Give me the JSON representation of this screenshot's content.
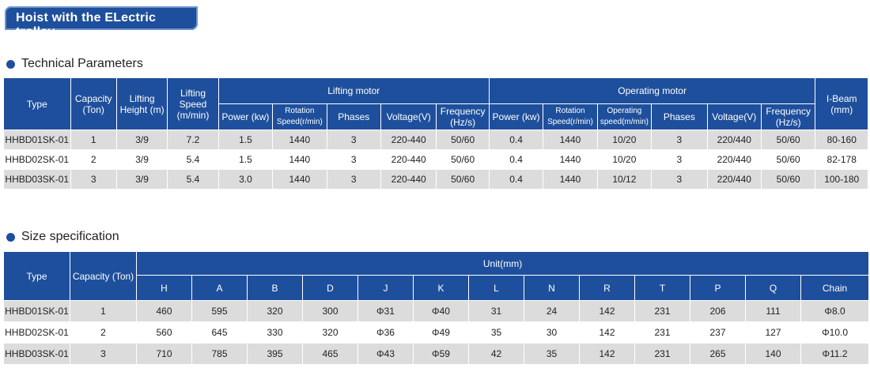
{
  "banner": {
    "title": "Hoist with the ELectric trolley"
  },
  "tech": {
    "heading": "Technical Parameters",
    "headers": {
      "type": "Type",
      "capacity": "Capacity (Ton)",
      "lifting_height": "Lifting Height (m)",
      "lifting_speed": "Lifting Speed (m/min)",
      "lifting_motor": "Lifting motor",
      "operating_motor": "Operating motor",
      "ibeam": "I-Beam (mm)",
      "lm_power": "Power (kw)",
      "lm_rotation": "Rotation Speed(r/min)",
      "lm_phases": "Phases",
      "lm_voltage": "Voltage(V)",
      "lm_frequency": "Frequency (Hz/s)",
      "om_power": "Power (kw)",
      "om_rotation": "Rotation Speed(r/min)",
      "om_speed": "Operating speed(m/min)",
      "om_phases": "Phases",
      "om_voltage": "Voltage(V)",
      "om_frequency": "Frequency (Hz/s)"
    },
    "rows": [
      [
        "HHBD01SK-01",
        "1",
        "3/9",
        "7.2",
        "1.5",
        "1440",
        "3",
        "220-440",
        "50/60",
        "0.4",
        "1440",
        "10/20",
        "3",
        "220/440",
        "50/60",
        "80-160"
      ],
      [
        "HHBD02SK-01",
        "2",
        "3/9",
        "5.4",
        "1.5",
        "1440",
        "3",
        "220-440",
        "50/60",
        "0.4",
        "1440",
        "10/20",
        "3",
        "220/440",
        "50/60",
        "82-178"
      ],
      [
        "HHBD03SK-01",
        "3",
        "3/9",
        "5.4",
        "3.0",
        "1440",
        "3",
        "220-440",
        "50/60",
        "0.4",
        "1440",
        "10/12",
        "3",
        "220/440",
        "50/60",
        "100-180"
      ]
    ]
  },
  "size": {
    "heading": "Size specification",
    "headers": {
      "type": "Type",
      "capacity": "Capacity (Ton)",
      "unit": "Unit(mm)",
      "cols": [
        "H",
        "A",
        "B",
        "D",
        "J",
        "K",
        "L",
        "N",
        "R",
        "T",
        "P",
        "Q",
        "Chain"
      ]
    },
    "rows": [
      [
        "HHBD01SK-01",
        "1",
        "460",
        "595",
        "320",
        "300",
        "Φ31",
        "Φ40",
        "31",
        "24",
        "142",
        "231",
        "206",
        "111",
        "Φ8.0"
      ],
      [
        "HHBD02SK-01",
        "2",
        "560",
        "645",
        "330",
        "320",
        "Φ36",
        "Φ49",
        "35",
        "30",
        "142",
        "231",
        "237",
        "127",
        "Φ10.0"
      ],
      [
        "HHBD03SK-01",
        "3",
        "710",
        "785",
        "395",
        "465",
        "Φ43",
        "Φ59",
        "42",
        "35",
        "142",
        "231",
        "265",
        "140",
        "Φ11.2"
      ]
    ]
  }
}
